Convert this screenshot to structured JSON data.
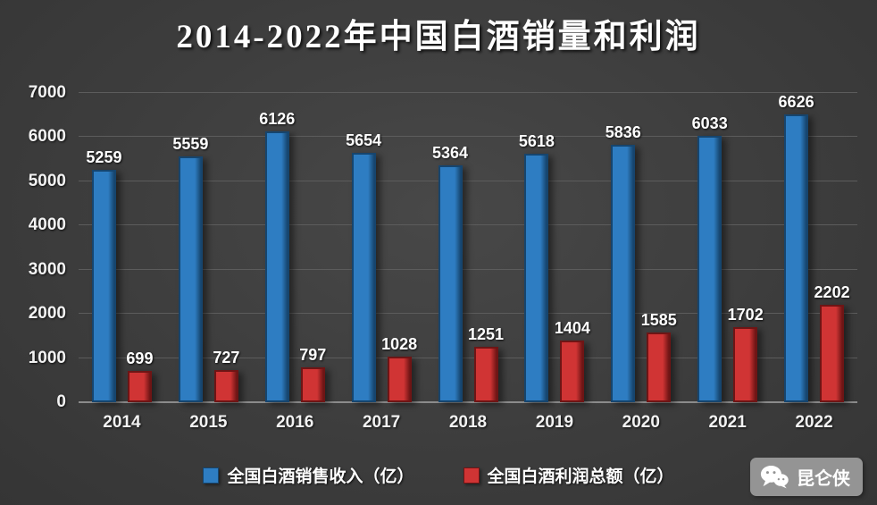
{
  "chart_data": {
    "type": "bar",
    "title": "2014-2022年中国白酒销量和利润",
    "categories": [
      "2014",
      "2015",
      "2016",
      "2017",
      "2018",
      "2019",
      "2020",
      "2021",
      "2022"
    ],
    "series": [
      {
        "name": "全国白酒销售收入（亿）",
        "color": "#2e7dc2",
        "border": "#16456e",
        "values": [
          5259,
          5559,
          6126,
          5654,
          5364,
          5618,
          5836,
          6033,
          6626
        ]
      },
      {
        "name": "全国白酒利润总额（亿）",
        "color": "#d03434",
        "border": "#6e1515",
        "values": [
          699,
          727,
          797,
          1028,
          1251,
          1404,
          1585,
          1702,
          2202
        ]
      }
    ],
    "ylim": [
      0,
      7000
    ],
    "ytick_step": 1000,
    "yticks": [
      0,
      1000,
      2000,
      3000,
      4000,
      5000,
      6000,
      7000
    ],
    "grid": true,
    "legend_position": "bottom",
    "background": "#3e3e3e"
  },
  "watermark": {
    "label": "昆仑侠"
  }
}
